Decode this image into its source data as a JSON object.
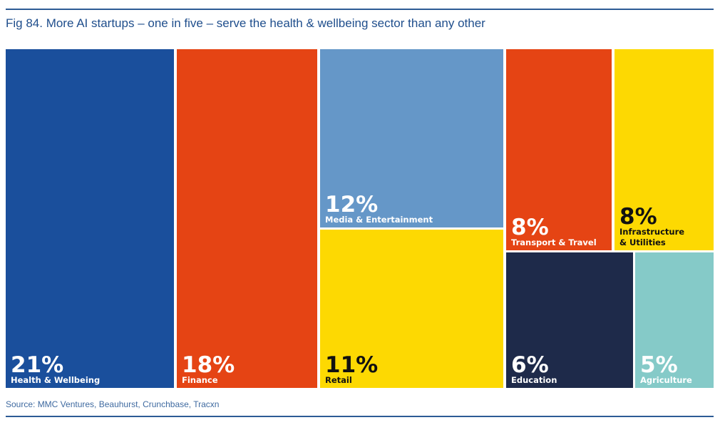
{
  "title": "Fig 84. More AI startups – one in five – serve the health & wellbeing sector than any other",
  "source": "Source: MMC Ventures, Beauhurst, Crunchbase, Tracxn",
  "chart_data": {
    "type": "treemap",
    "unit": "%",
    "items": [
      {
        "label": "Health & Wellbeing",
        "value": 21,
        "color": "#1a4f9c",
        "text_color": "#ffffff"
      },
      {
        "label": "Finance",
        "value": 18,
        "color": "#e54414",
        "text_color": "#ffffff"
      },
      {
        "label": "Media & Entertainment",
        "value": 12,
        "color": "#6597c8",
        "text_color": "#ffffff"
      },
      {
        "label": "Retail",
        "value": 11,
        "color": "#fdd902",
        "text_color": "#111111"
      },
      {
        "label": "Transport & Travel",
        "value": 8,
        "color": "#e54414",
        "text_color": "#ffffff"
      },
      {
        "label": "Infrastructure & Utilities",
        "value": 8,
        "color": "#fdd902",
        "text_color": "#111111"
      },
      {
        "label": "Education",
        "value": 6,
        "color": "#1e2a4a",
        "text_color": "#ffffff"
      },
      {
        "label": "Agriculture",
        "value": 5,
        "color": "#85cac8",
        "text_color": "#ffffff"
      }
    ]
  }
}
